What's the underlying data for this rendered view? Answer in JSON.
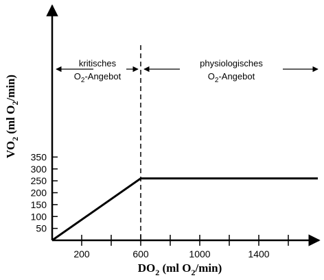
{
  "chart_data": {
    "type": "line",
    "title": "",
    "xlabel": {
      "main": "DO",
      "sub": "2",
      "rest": " (ml O",
      "sub2": "2",
      "rest2": "/min)"
    },
    "ylabel": {
      "main": "VO",
      "sub": "2",
      "rest": " (ml O",
      "sub2": "2",
      "rest2": "/min)"
    },
    "xlim": [
      0,
      1800
    ],
    "ylim": [
      0,
      375
    ],
    "x_minor_ticks": [
      200,
      400,
      600,
      800,
      1000,
      1200,
      1400,
      1600
    ],
    "x_tick_labels": [
      200,
      600,
      1000,
      1400
    ],
    "y_ticks": [
      50,
      100,
      150,
      200,
      250,
      300,
      350
    ],
    "series": [
      {
        "x": [
          0,
          600,
          1800
        ],
        "y": [
          0,
          260,
          260
        ]
      }
    ],
    "vline_x": 600,
    "annotations": [
      {
        "line1": "kritisches",
        "line2_main": "O",
        "line2_sub": "2",
        "line2_rest": "-Angebot"
      },
      {
        "line1": "physiologisches",
        "line2_main": "O",
        "line2_sub": "2",
        "line2_rest": "-Angebot"
      }
    ]
  }
}
